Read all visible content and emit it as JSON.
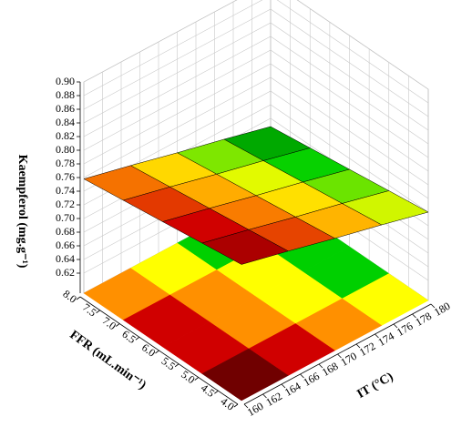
{
  "chart_data": {
    "type": "surface",
    "x_label": "IT (°C)",
    "y_label": "FFR (mL.min⁻¹)",
    "z_label": "Kaempferol (mg.g⁻¹)",
    "x": [
      160,
      165,
      170,
      175,
      180
    ],
    "y": [
      4,
      5,
      6,
      7,
      8
    ],
    "z": [
      [
        0.79,
        0.773,
        0.755,
        0.738,
        0.72
      ],
      [
        0.782,
        0.765,
        0.747,
        0.73,
        0.712
      ],
      [
        0.774,
        0.757,
        0.739,
        0.722,
        0.704
      ],
      [
        0.766,
        0.749,
        0.731,
        0.714,
        0.696
      ],
      [
        0.758,
        0.741,
        0.723,
        0.706,
        0.688
      ]
    ],
    "xlim": [
      160,
      180
    ],
    "ylim": [
      4,
      8
    ],
    "zlim": [
      0.62,
      0.9
    ],
    "xticks": [
      160,
      162,
      164,
      166,
      168,
      170,
      172,
      174,
      176,
      178,
      180
    ],
    "yticks": [
      {
        "value": 4,
        "label": "4.0"
      },
      4.5,
      {
        "value": 5,
        "label": "5.0"
      },
      5.5,
      {
        "value": 6,
        "label": "6.0"
      },
      6.5,
      {
        "value": 7,
        "label": "7.0"
      },
      7.5,
      {
        "value": 8,
        "label": "8.0"
      }
    ],
    "zticks": [
      0.62,
      0.64,
      0.66,
      0.68,
      {
        "value": 0.7,
        "label": "0.70"
      },
      0.72,
      0.74,
      0.76,
      0.78,
      {
        "value": 0.8,
        "label": "0.80"
      },
      0.82,
      0.84,
      0.86,
      0.88,
      {
        "value": 0.9,
        "label": "0.90"
      }
    ],
    "colors": [
      "#006400",
      "#00d000",
      "#ffff00",
      "#ff9000",
      "#d00000",
      "#700000"
    ],
    "grid": true,
    "contour_floor": true
  }
}
